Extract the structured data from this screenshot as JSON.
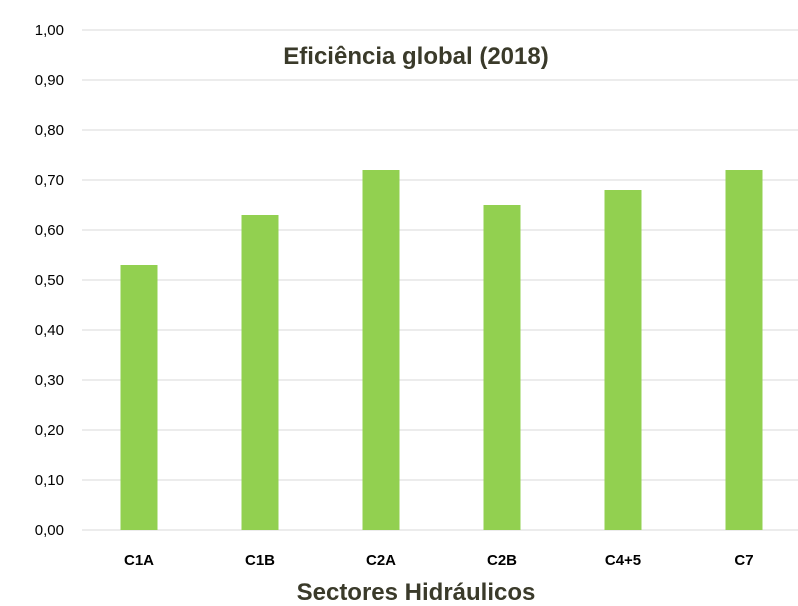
{
  "chart_data": {
    "type": "bar",
    "title": "Eficiência global (2018)",
    "xlabel": "Sectores Hidráulicos",
    "ylabel": "",
    "categories": [
      "C1A",
      "C1B",
      "C2A",
      "C2B",
      "C4+5",
      "C7"
    ],
    "values": [
      0.53,
      0.63,
      0.72,
      0.65,
      0.68,
      0.72
    ],
    "ylim": [
      0,
      1
    ],
    "yticks": [
      0,
      0.1,
      0.2,
      0.3,
      0.4,
      0.5,
      0.6,
      0.7,
      0.8,
      0.9,
      1.0
    ],
    "ytick_labels": [
      "0,00",
      "0,10",
      "0,20",
      "0,30",
      "0,40",
      "0,50",
      "0,60",
      "0,70",
      "0,80",
      "0,90",
      "1,00"
    ],
    "grid": true,
    "legend": "none",
    "bar_color": "#92d050",
    "grid_color": "#d9d9d9"
  }
}
